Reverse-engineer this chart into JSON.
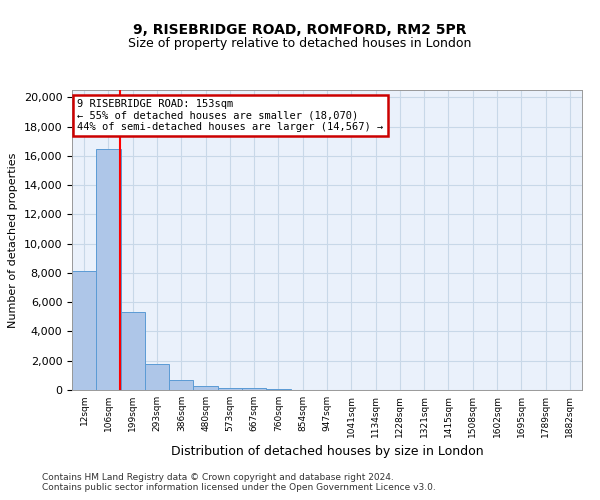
{
  "title1": "9, RISEBRIDGE ROAD, ROMFORD, RM2 5PR",
  "title2": "Size of property relative to detached houses in London",
  "xlabel": "Distribution of detached houses by size in London",
  "ylabel": "Number of detached properties",
  "bin_labels": [
    "12sqm",
    "106sqm",
    "199sqm",
    "293sqm",
    "386sqm",
    "480sqm",
    "573sqm",
    "667sqm",
    "760sqm",
    "854sqm",
    "947sqm",
    "1041sqm",
    "1134sqm",
    "1228sqm",
    "1321sqm",
    "1415sqm",
    "1508sqm",
    "1602sqm",
    "1695sqm",
    "1789sqm",
    "1882sqm"
  ],
  "bar_heights": [
    8100,
    16500,
    5300,
    1750,
    680,
    280,
    170,
    110,
    60,
    0,
    0,
    0,
    0,
    0,
    0,
    0,
    0,
    0,
    0,
    0,
    0
  ],
  "bar_color": "#aec6e8",
  "bar_edge_color": "#5b9bd5",
  "grid_color": "#c8d8e8",
  "background_color": "#eaf1fb",
  "property_line_x": 1.47,
  "annotation_box_text": "9 RISEBRIDGE ROAD: 153sqm\n← 55% of detached houses are smaller (18,070)\n44% of semi-detached houses are larger (14,567) →",
  "annotation_box_color": "#cc0000",
  "ylim": [
    0,
    20500
  ],
  "yticks": [
    0,
    2000,
    4000,
    6000,
    8000,
    10000,
    12000,
    14000,
    16000,
    18000,
    20000
  ],
  "footer1": "Contains HM Land Registry data © Crown copyright and database right 2024.",
  "footer2": "Contains public sector information licensed under the Open Government Licence v3.0."
}
